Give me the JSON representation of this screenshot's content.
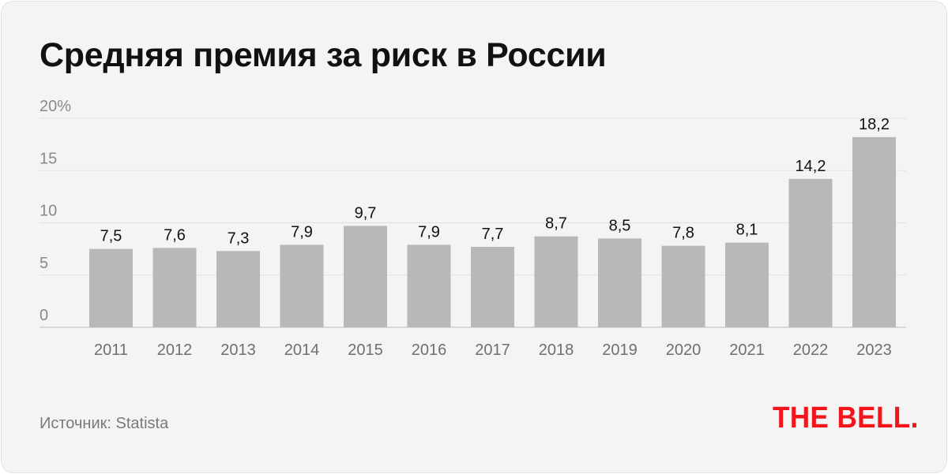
{
  "chart_data": {
    "type": "bar",
    "title": "Средняя премия за риск в России",
    "categories": [
      "2011",
      "2012",
      "2013",
      "2014",
      "2015",
      "2016",
      "2017",
      "2018",
      "2019",
      "2020",
      "2021",
      "2022",
      "2023"
    ],
    "values": [
      7.5,
      7.6,
      7.3,
      7.9,
      9.7,
      7.9,
      7.7,
      8.7,
      8.5,
      7.8,
      8.1,
      14.2,
      18.2
    ],
    "data_labels": [
      "7,5",
      "7,6",
      "7,3",
      "7,9",
      "9,7",
      "7,9",
      "7,7",
      "8,7",
      "8,5",
      "7,8",
      "8,1",
      "14,2",
      "18,2"
    ],
    "y_ticks": [
      0,
      5,
      10,
      15,
      20
    ],
    "y_tick_labels": [
      "0",
      "5",
      "10",
      "15",
      "20%"
    ],
    "ylim": [
      0,
      20
    ],
    "grid": true,
    "bar_color": "#b8b8b8"
  },
  "source": "Источник: Statista",
  "logo": "THE BELL.",
  "colors": {
    "background": "#f4f4f4",
    "logo": "#f2151c",
    "grid": "#e0e0e0"
  }
}
